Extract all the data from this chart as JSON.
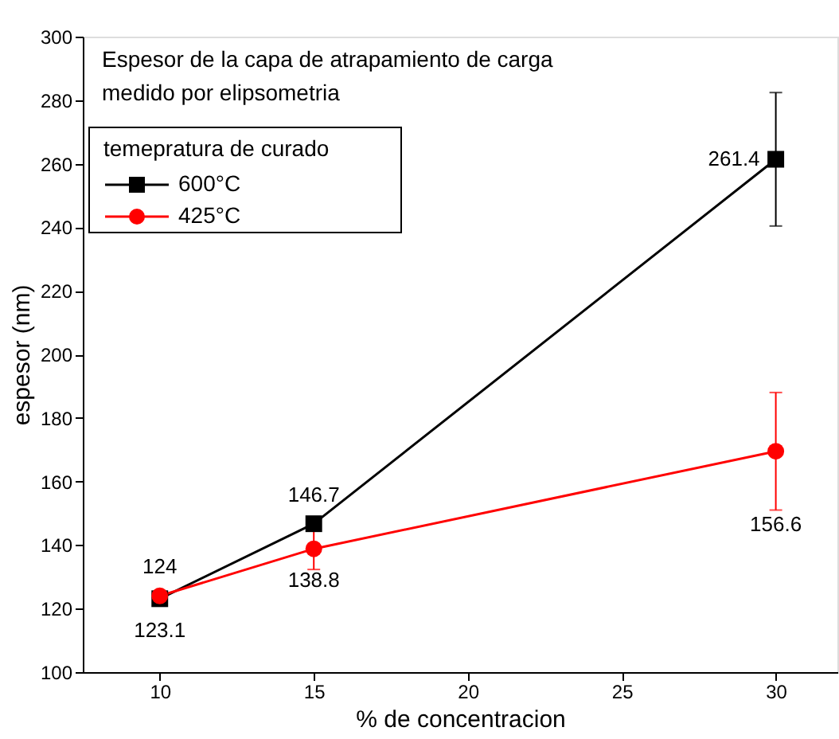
{
  "chart_data": {
    "type": "line",
    "xlabel": "% de concentracion",
    "ylabel": "espesor (nm)",
    "legend_title": "temepratura de curado",
    "annotations": [
      "Espesor de la capa de atrapamiento de carga medido por elipsometria",
      {
        "text": "156.6",
        "x": 30,
        "y": 151
      }
    ],
    "x": [
      10,
      15,
      30
    ],
    "series": [
      {
        "name": "600°C",
        "color": "#000000",
        "marker": "square",
        "values": [
          123.1,
          146.7,
          261.4
        ],
        "errors": [
          1,
          2,
          21
        ],
        "value_labels": [
          "123.1",
          "146.7",
          "261.4"
        ]
      },
      {
        "name": "425°C",
        "color": "#ff0000",
        "marker": "circle",
        "values": [
          124,
          138.8,
          169.5
        ],
        "errors": [
          1,
          6.5,
          18.5
        ],
        "value_labels": [
          "124",
          "138.8",
          null
        ]
      }
    ],
    "xlim": [
      7.5,
      32
    ],
    "xticks": [
      10,
      15,
      20,
      25,
      30
    ],
    "ylim": [
      100,
      300
    ],
    "yticks": [
      100,
      120,
      140,
      160,
      180,
      200,
      220,
      240,
      260,
      280,
      300
    ],
    "legend": "top left",
    "grid": false,
    "line_style": "solid"
  }
}
